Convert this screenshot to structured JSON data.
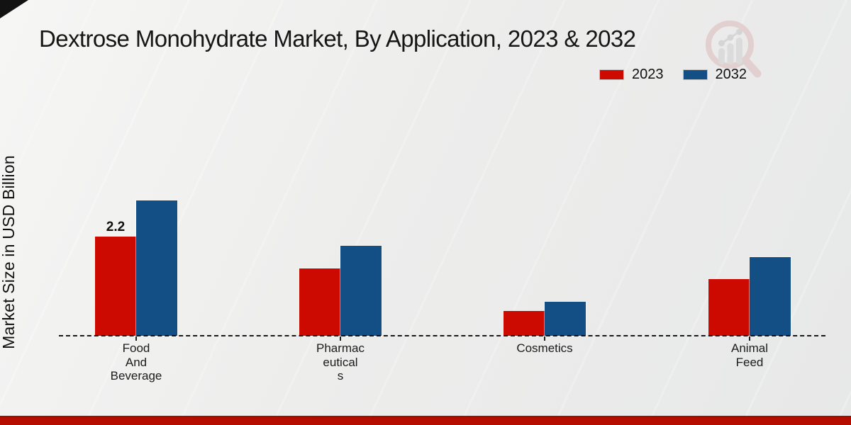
{
  "title": "Dextrose Monohydrate Market, By Application, 2023 & 2032",
  "legend": {
    "items": [
      {
        "label": "2023",
        "color": "#cc0a01"
      },
      {
        "label": "2032",
        "color": "#134e85"
      }
    ]
  },
  "branding": {
    "logo_icon": "magnifier-bar-chart-watermark",
    "footer_bar_color": "#b50d00",
    "corner_accent_color": "#121212"
  },
  "chart_data": {
    "type": "bar",
    "title": "Dextrose Monohydrate Market, By Application, 2023 & 2032",
    "xlabel": "",
    "ylabel": "Market Size in USD Billion",
    "categories": [
      "Food And Beverage",
      "Pharmaceuticals",
      "Cosmetics",
      "Animal Feed"
    ],
    "categories_display": [
      {
        "lines": [
          "Food",
          "And",
          "Beverage"
        ]
      },
      {
        "lines": [
          "Pharmac",
          "eutical",
          "s"
        ]
      },
      {
        "lines": [
          "Cosmetics"
        ]
      },
      {
        "lines": [
          "Animal",
          "Feed"
        ]
      }
    ],
    "series": [
      {
        "name": "2023",
        "color": "#cc0a01",
        "values": [
          2.2,
          1.5,
          0.55,
          1.25
        ]
      },
      {
        "name": "2032",
        "color": "#134e85",
        "values": [
          3.0,
          2.0,
          0.75,
          1.75
        ]
      }
    ],
    "data_labels": [
      {
        "category": "Food And Beverage",
        "series": "2023",
        "text": "2.2"
      }
    ],
    "ylim": [
      0,
      3.5
    ],
    "grid": false,
    "y_axis_ticks_visible": false,
    "baseline_style": "dashed",
    "legend_position": "top-right"
  }
}
